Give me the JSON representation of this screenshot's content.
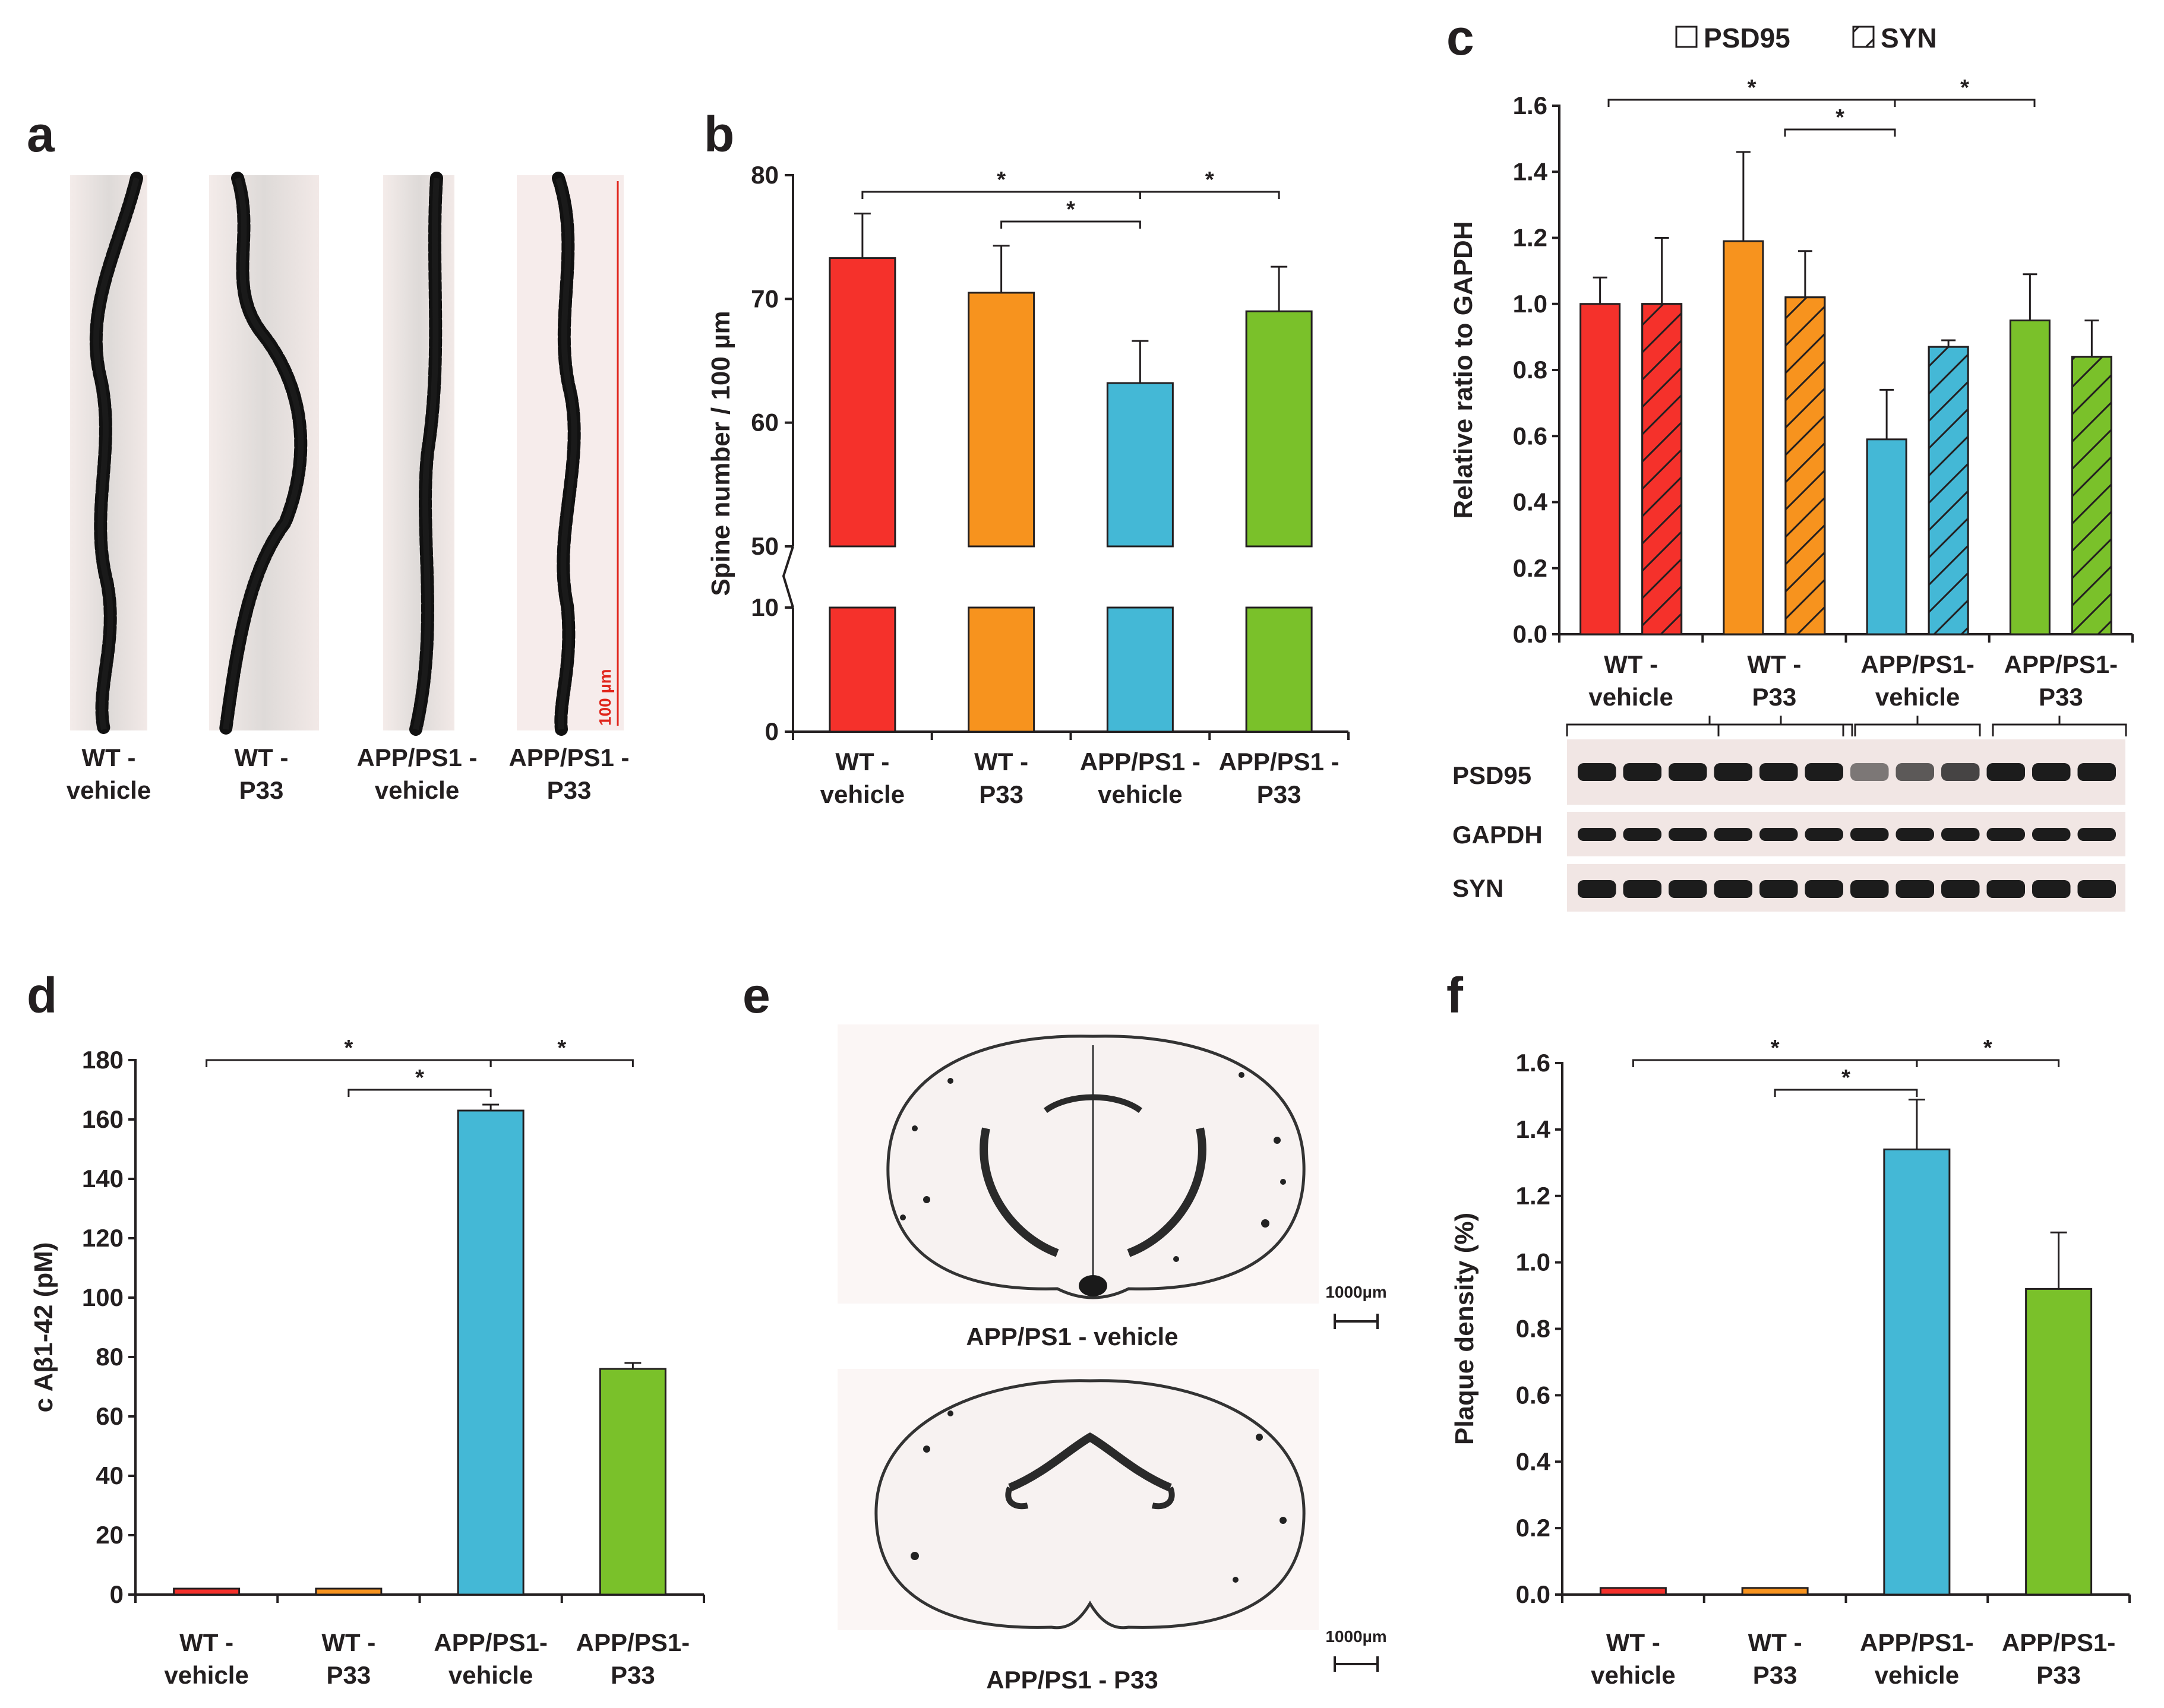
{
  "figure": {
    "panel_labels": [
      "a",
      "b",
      "c",
      "d",
      "e",
      "f"
    ],
    "colors": {
      "wt_vehicle": "#f5312b",
      "wt_p33": "#f7931e",
      "app_vehicle": "#44b8d6",
      "app_p33": "#7ac12a"
    }
  },
  "panel_a": {
    "captions": [
      {
        "line1": "WT -",
        "line2": "vehicle"
      },
      {
        "line1": "WT -",
        "line2": "P33"
      },
      {
        "line1": "APP/PS1 -",
        "line2": "vehicle"
      },
      {
        "line1": "APP/PS1 -",
        "line2": "P33"
      }
    ],
    "scale_label": "100 µm"
  },
  "panel_e": {
    "caption_top": "APP/PS1 - vehicle",
    "caption_bottom": "APP/PS1 - P33",
    "scale_top": "1000µm",
    "scale_bottom": "1000µm"
  },
  "blot": {
    "labels": [
      "PSD95",
      "GAPDH",
      "SYN"
    ]
  },
  "chart_data": [
    {
      "panel": "b",
      "type": "bar",
      "categories": [
        [
          "WT -",
          "vehicle"
        ],
        [
          "WT -",
          "P33"
        ],
        [
          "APP/PS1 -",
          "vehicle"
        ],
        [
          "APP/PS1 -",
          "P33"
        ]
      ],
      "values": [
        73.3,
        70.5,
        63.2,
        69.0
      ],
      "errors": [
        3.6,
        3.8,
        3.4,
        3.6
      ],
      "ylabel": "Spine number / 100 µm",
      "axis_break": {
        "lower": [
          0,
          10
        ],
        "upper": [
          50,
          80
        ]
      },
      "ticks_lower": [
        0,
        10
      ],
      "ticks_upper": [
        50,
        60,
        70,
        80
      ],
      "significance": [
        {
          "from": 0,
          "to": 2,
          "label": "*"
        },
        {
          "from": 1,
          "to": 2,
          "label": "*"
        },
        {
          "from": 2,
          "to": 3,
          "label": "*"
        }
      ]
    },
    {
      "panel": "c",
      "type": "bar",
      "categories": [
        [
          "WT -",
          "vehicle"
        ],
        [
          "WT -",
          "P33"
        ],
        [
          "APP/PS1-",
          "vehicle"
        ],
        [
          "APP/PS1-",
          "P33"
        ]
      ],
      "series": [
        {
          "name": "PSD95",
          "values": [
            1.0,
            1.19,
            0.59,
            0.95
          ],
          "errors": [
            0.08,
            0.27,
            0.15,
            0.14
          ]
        },
        {
          "name": "SYN",
          "values": [
            1.0,
            1.02,
            0.87,
            0.84
          ],
          "errors": [
            0.2,
            0.14,
            0.02,
            0.11
          ]
        }
      ],
      "ylabel": "Relative ratio to GAPDH",
      "ylim": [
        0,
        1.6
      ],
      "ticks": [
        "0.0",
        "0.2",
        "0.4",
        "0.6",
        "0.8",
        "1.0",
        "1.2",
        "1.4",
        "1.6"
      ],
      "significance": [
        {
          "from": 0,
          "to": 2,
          "label": "*"
        },
        {
          "from": 1,
          "to": 2,
          "label": "*"
        },
        {
          "from": 2,
          "to": 3,
          "label": "*"
        }
      ]
    },
    {
      "panel": "d",
      "type": "bar",
      "categories": [
        [
          "WT -",
          "vehicle"
        ],
        [
          "WT -",
          "P33"
        ],
        [
          "APP/PS1-",
          "vehicle"
        ],
        [
          "APP/PS1-",
          "P33"
        ]
      ],
      "values": [
        2,
        2,
        163,
        76
      ],
      "errors": [
        0,
        0,
        2,
        2
      ],
      "ylabel": "c Aβ1-42 (pM)",
      "ylim": [
        0,
        180
      ],
      "ticks": [
        "0",
        "20",
        "40",
        "60",
        "80",
        "100",
        "120",
        "140",
        "160",
        "180"
      ],
      "significance": [
        {
          "from": 0,
          "to": 2,
          "label": "*"
        },
        {
          "from": 1,
          "to": 2,
          "label": "*"
        },
        {
          "from": 2,
          "to": 3,
          "label": "*"
        }
      ]
    },
    {
      "panel": "f",
      "type": "bar",
      "categories": [
        [
          "WT -",
          "vehicle"
        ],
        [
          "WT -",
          "P33"
        ],
        [
          "APP/PS1-",
          "vehicle"
        ],
        [
          "APP/PS1-",
          "P33"
        ]
      ],
      "values": [
        0.02,
        0.02,
        1.34,
        0.92
      ],
      "errors": [
        0,
        0,
        0.15,
        0.17
      ],
      "ylabel": "Plaque density (%)",
      "ylim": [
        0,
        1.6
      ],
      "ticks": [
        "0.0",
        "0.2",
        "0.4",
        "0.6",
        "0.8",
        "1.0",
        "1.2",
        "1.4",
        "1.6"
      ],
      "significance": [
        {
          "from": 0,
          "to": 2,
          "label": "*"
        },
        {
          "from": 1,
          "to": 2,
          "label": "*"
        },
        {
          "from": 2,
          "to": 3,
          "label": "*"
        }
      ]
    }
  ]
}
